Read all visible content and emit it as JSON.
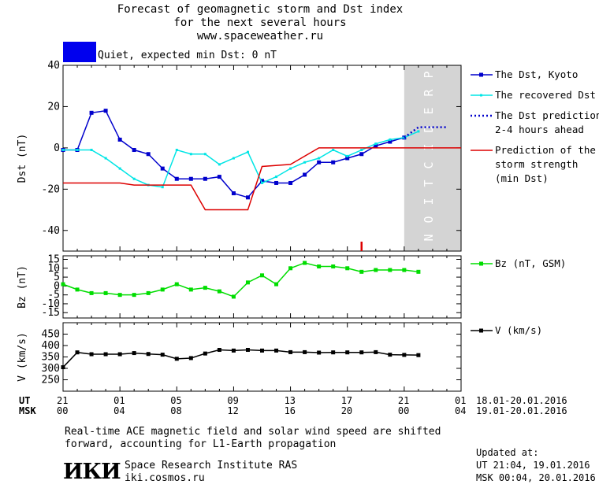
{
  "header": {
    "title_line1": "Forecast of geomagnetic storm and Dst index",
    "title_line2": "for the next several hours",
    "website": "www.spaceweather.ru",
    "status_text": "Quiet, expected min Dst: 0 nT",
    "status_color": "#0000ee"
  },
  "footer": {
    "note_line1": "Real-time ACE magnetic field and solar wind speed are shifted",
    "note_line2": "forward, accounting for L1-Earth propagation",
    "institute": "Space Research Institute RAS",
    "institute_url": "iki.cosmos.ru",
    "logo_text": "ИКИ",
    "updated_label": "Updated at:",
    "updated_ut": "UT  21:04, 19.01.2016",
    "updated_msk": "MSK 00:04, 20.01.2016"
  },
  "time_axis": {
    "ut_label": "UT",
    "msk_label": "MSK",
    "ut_ticks": [
      "21",
      "01",
      "05",
      "09",
      "13",
      "17",
      "21",
      "01"
    ],
    "msk_ticks": [
      "00",
      "04",
      "08",
      "12",
      "16",
      "20",
      "00",
      "04"
    ],
    "ut_dates": "18.01-20.01.2016",
    "msk_dates": "19.01-20.01.2016"
  },
  "chart_data": [
    {
      "type": "line",
      "ylabel": "Dst (nT)",
      "x_unit": "hours since 21 UT",
      "xlim": [
        0,
        28
      ],
      "ylim": [
        -50,
        40
      ],
      "yticks": [
        40,
        20,
        0,
        -20,
        -40
      ],
      "prediction_band": {
        "x": [
          24,
          28
        ],
        "label": "PREDICTION",
        "color": "#d4d4d4"
      },
      "storm_marker_x": 21,
      "series": [
        {
          "name": "The Dst, Kyoto",
          "color": "#0000cc",
          "marker": "square",
          "x": [
            0,
            1,
            2,
            3,
            4,
            5,
            6,
            7,
            8,
            9,
            10,
            11,
            12,
            13,
            14,
            15,
            16,
            17,
            18,
            19,
            20,
            21,
            22,
            23,
            24
          ],
          "y": [
            -1,
            -1,
            17,
            18,
            4,
            -1,
            -3,
            -10,
            -15,
            -15,
            -15,
            -14,
            -22,
            -24,
            -16,
            -17,
            -17,
            -13,
            -7,
            -7,
            -5,
            -3,
            1,
            3,
            5
          ]
        },
        {
          "name": "The recovered Dst",
          "color": "#00e5e5",
          "marker": "dot",
          "x": [
            0,
            1,
            2,
            3,
            4,
            5,
            6,
            7,
            8,
            9,
            10,
            11,
            12,
            13,
            14,
            15,
            16,
            17,
            18,
            19,
            20,
            21,
            22,
            23,
            24,
            25
          ],
          "y": [
            -1,
            -1,
            -1,
            -5,
            -10,
            -15,
            -18,
            -19,
            -1,
            -3,
            -3,
            -8,
            -5,
            -2,
            -17,
            -14,
            -10,
            -7,
            -5,
            -1,
            -4,
            -1,
            2,
            4,
            5,
            8
          ]
        },
        {
          "name": "The Dst prediction\n2-4 hours ahead",
          "color": "#0000cc",
          "style": "dotted",
          "x": [
            24,
            25,
            26,
            27
          ],
          "y": [
            5,
            10,
            10,
            10
          ]
        },
        {
          "name": "Prediction of the\nstorm strength\n(min Dst)",
          "color": "#dd0000",
          "style": "step",
          "x": [
            0,
            4,
            5,
            9,
            10,
            13,
            14,
            16,
            18,
            28
          ],
          "y": [
            -17,
            -17,
            -18,
            -18,
            -30,
            -30,
            -9,
            -8,
            0,
            0
          ]
        }
      ]
    },
    {
      "type": "line",
      "ylabel": "Bz (nT)",
      "ylim": [
        -18,
        17
      ],
      "yticks": [
        15,
        10,
        5,
        0,
        -5,
        -10,
        -15
      ],
      "series": [
        {
          "name": "Bz (nT, GSM)",
          "color": "#00dd00",
          "marker": "square",
          "x": [
            0,
            1,
            2,
            3,
            4,
            5,
            6,
            7,
            8,
            9,
            10,
            11,
            12,
            13,
            14,
            15,
            16,
            17,
            18,
            19,
            20,
            21,
            22,
            23,
            24,
            25
          ],
          "y": [
            1,
            -2,
            -4,
            -4,
            -5,
            -5,
            -4,
            -2,
            1,
            -2,
            -1,
            -3,
            -6,
            2,
            6,
            1,
            10,
            13,
            11,
            11,
            10,
            8,
            9,
            9,
            9,
            8
          ]
        }
      ]
    },
    {
      "type": "line",
      "ylabel": "V (km/s)",
      "ylim": [
        200,
        500
      ],
      "yticks": [
        450,
        400,
        350,
        300,
        250
      ],
      "series": [
        {
          "name": "V (km/s)",
          "color": "#000000",
          "marker": "square",
          "x": [
            0,
            1,
            2,
            3,
            4,
            5,
            6,
            7,
            8,
            9,
            10,
            11,
            12,
            13,
            14,
            15,
            16,
            17,
            18,
            19,
            20,
            21,
            22,
            23,
            24,
            25
          ],
          "y": [
            305,
            370,
            362,
            362,
            362,
            367,
            363,
            360,
            342,
            345,
            365,
            381,
            378,
            381,
            378,
            378,
            371,
            371,
            369,
            370,
            370,
            370,
            371,
            360,
            359,
            358
          ]
        }
      ]
    }
  ]
}
